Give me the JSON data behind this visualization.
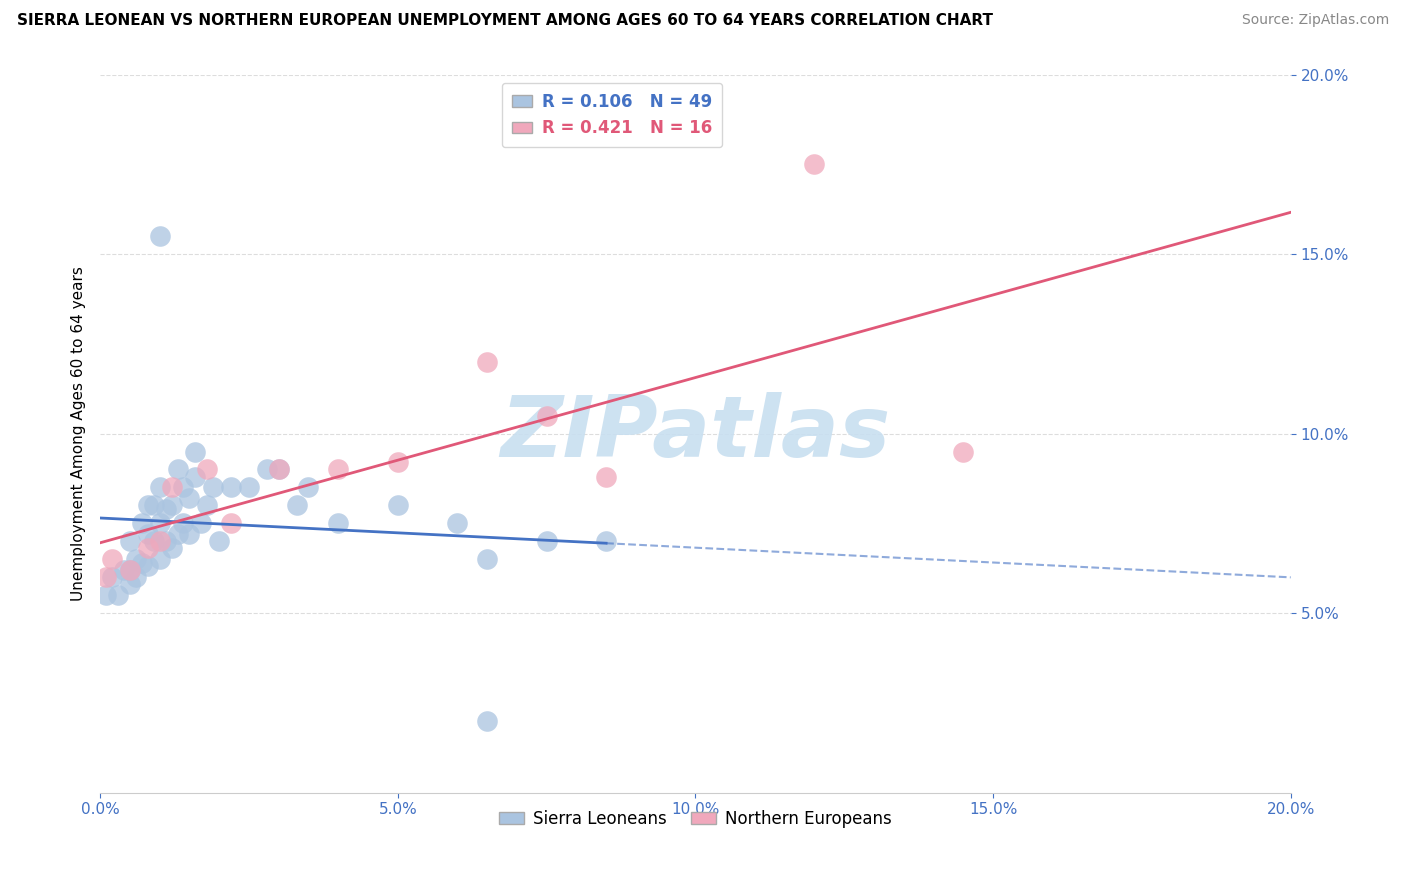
{
  "title": "SIERRA LEONEAN VS NORTHERN EUROPEAN UNEMPLOYMENT AMONG AGES 60 TO 64 YEARS CORRELATION CHART",
  "source": "Source: ZipAtlas.com",
  "ylabel": "Unemployment Among Ages 60 to 64 years",
  "xlim": [
    0.0,
    0.2
  ],
  "ylim": [
    0.0,
    0.2
  ],
  "xticks": [
    0.0,
    0.05,
    0.1,
    0.15,
    0.2
  ],
  "yticks": [
    0.05,
    0.1,
    0.15,
    0.2
  ],
  "sl_R": 0.106,
  "sl_N": 49,
  "ne_R": 0.421,
  "ne_N": 16,
  "sl_color": "#aac4e0",
  "ne_color": "#f0a8bc",
  "sl_line_color": "#4472c4",
  "ne_line_color": "#e05878",
  "watermark_color": "#c8dff0",
  "sl_x": [
    0.001,
    0.002,
    0.003,
    0.004,
    0.005,
    0.005,
    0.005,
    0.006,
    0.006,
    0.007,
    0.007,
    0.008,
    0.008,
    0.008,
    0.009,
    0.009,
    0.01,
    0.01,
    0.01,
    0.011,
    0.011,
    0.012,
    0.012,
    0.013,
    0.013,
    0.014,
    0.014,
    0.015,
    0.015,
    0.016,
    0.016,
    0.017,
    0.018,
    0.019,
    0.02,
    0.022,
    0.025,
    0.028,
    0.03,
    0.033,
    0.035,
    0.04,
    0.05,
    0.06,
    0.065,
    0.075,
    0.085,
    0.01,
    0.065
  ],
  "sl_y": [
    0.055,
    0.06,
    0.055,
    0.062,
    0.058,
    0.062,
    0.07,
    0.06,
    0.065,
    0.064,
    0.075,
    0.063,
    0.072,
    0.08,
    0.07,
    0.08,
    0.065,
    0.075,
    0.085,
    0.07,
    0.079,
    0.068,
    0.08,
    0.072,
    0.09,
    0.075,
    0.085,
    0.072,
    0.082,
    0.088,
    0.095,
    0.075,
    0.08,
    0.085,
    0.07,
    0.085,
    0.085,
    0.09,
    0.09,
    0.08,
    0.085,
    0.075,
    0.08,
    0.075,
    0.065,
    0.07,
    0.07,
    0.155,
    0.02
  ],
  "ne_x": [
    0.001,
    0.002,
    0.005,
    0.008,
    0.01,
    0.012,
    0.018,
    0.022,
    0.03,
    0.04,
    0.05,
    0.065,
    0.075,
    0.085,
    0.12,
    0.145
  ],
  "ne_y": [
    0.06,
    0.065,
    0.062,
    0.068,
    0.07,
    0.085,
    0.09,
    0.075,
    0.09,
    0.09,
    0.092,
    0.12,
    0.105,
    0.088,
    0.175,
    0.095
  ],
  "sl_line_x_solid_end": 0.075,
  "background_color": "#ffffff",
  "grid_color": "#dddddd",
  "tick_color": "#4472c4",
  "title_fontsize": 11,
  "source_fontsize": 10,
  "tick_fontsize": 11,
  "ylabel_fontsize": 11
}
